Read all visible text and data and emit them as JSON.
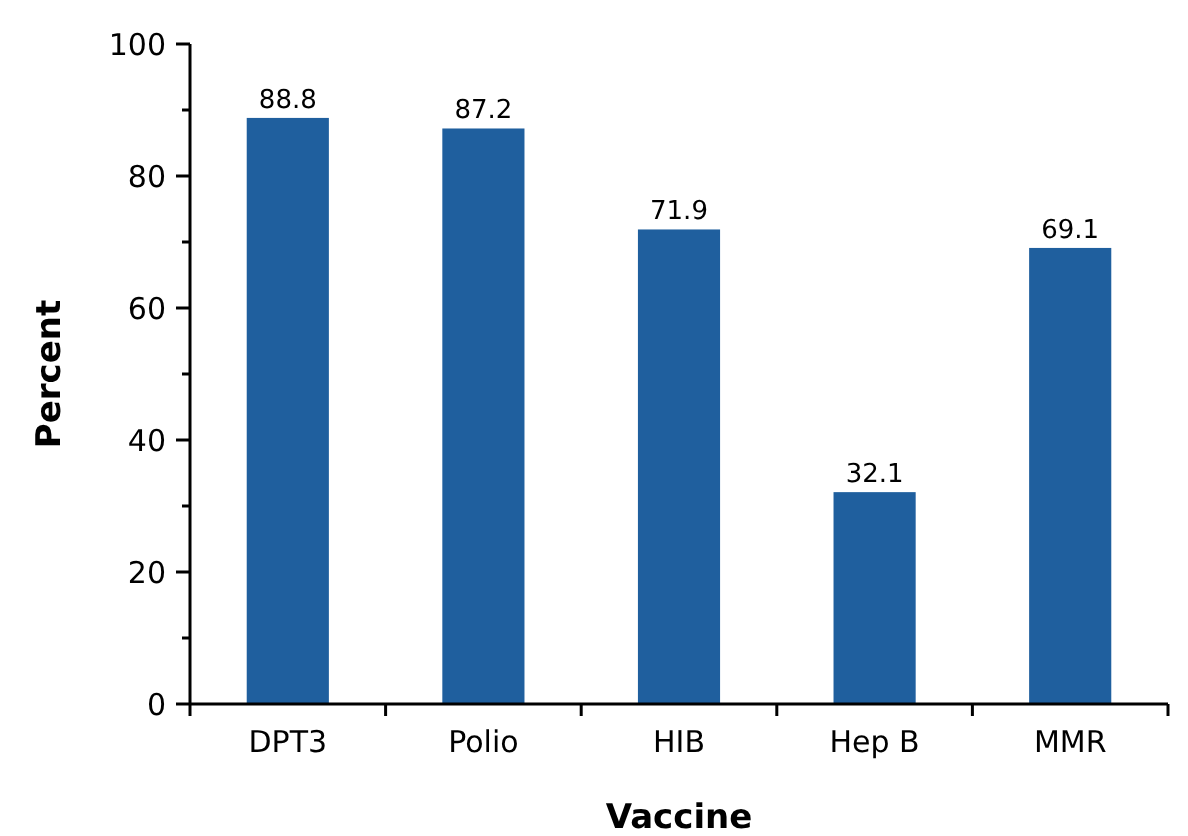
{
  "chart_data": {
    "type": "bar",
    "xlabel": "Vaccine",
    "ylabel": "Percent",
    "categories": [
      "DPT3",
      "Polio",
      "HIB",
      "Hep B",
      "MMR"
    ],
    "values": [
      88.8,
      87.2,
      71.9,
      32.1,
      69.1
    ],
    "color": "#1f5f9e",
    "ylim": [
      0,
      100
    ],
    "yticks": [
      0,
      {
        "value": 10,
        "label": null
      },
      20,
      {
        "value": 30,
        "label": null
      },
      40,
      {
        "value": 50,
        "label": null
      },
      60,
      {
        "value": 70,
        "label": null
      },
      80,
      {
        "value": 90,
        "label": null
      },
      100
    ],
    "data_labels": true
  }
}
